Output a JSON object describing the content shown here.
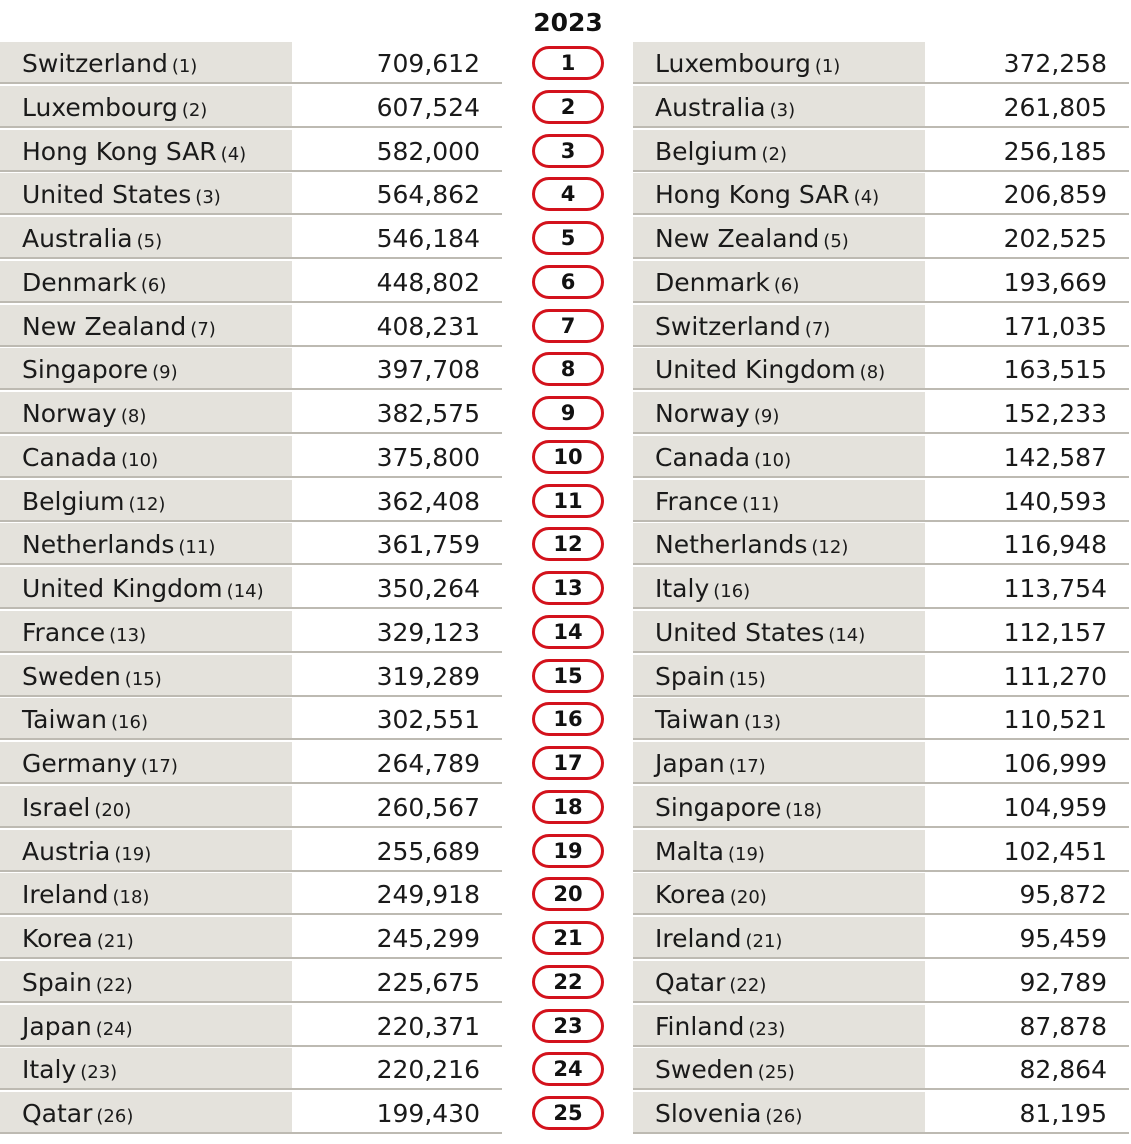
{
  "year": "2023",
  "ranks": [
    "1",
    "2",
    "3",
    "4",
    "5",
    "6",
    "7",
    "8",
    "9",
    "10",
    "11",
    "12",
    "13",
    "14",
    "15",
    "16",
    "17",
    "18",
    "19",
    "20",
    "21",
    "22",
    "23",
    "24",
    "25"
  ],
  "left": [
    {
      "name": "Switzerland",
      "prev": "(1)",
      "value": "709,612"
    },
    {
      "name": "Luxembourg",
      "prev": "(2)",
      "value": "607,524"
    },
    {
      "name": "Hong Kong SAR",
      "prev": "(4)",
      "value": "582,000"
    },
    {
      "name": "United States",
      "prev": "(3)",
      "value": "564,862"
    },
    {
      "name": "Australia",
      "prev": "(5)",
      "value": "546,184"
    },
    {
      "name": "Denmark",
      "prev": "(6)",
      "value": "448,802"
    },
    {
      "name": "New Zealand",
      "prev": "(7)",
      "value": "408,231"
    },
    {
      "name": "Singapore",
      "prev": "(9)",
      "value": "397,708"
    },
    {
      "name": "Norway",
      "prev": "(8)",
      "value": "382,575"
    },
    {
      "name": "Canada",
      "prev": "(10)",
      "value": "375,800"
    },
    {
      "name": "Belgium",
      "prev": "(12)",
      "value": "362,408"
    },
    {
      "name": "Netherlands",
      "prev": "(11)",
      "value": "361,759"
    },
    {
      "name": "United Kingdom",
      "prev": "(14)",
      "value": "350,264"
    },
    {
      "name": "France",
      "prev": "(13)",
      "value": "329,123"
    },
    {
      "name": "Sweden",
      "prev": "(15)",
      "value": "319,289"
    },
    {
      "name": "Taiwan",
      "prev": "(16)",
      "value": "302,551"
    },
    {
      "name": "Germany",
      "prev": "(17)",
      "value": "264,789"
    },
    {
      "name": "Israel",
      "prev": "(20)",
      "value": "260,567"
    },
    {
      "name": "Austria",
      "prev": "(19)",
      "value": "255,689"
    },
    {
      "name": "Ireland",
      "prev": "(18)",
      "value": "249,918"
    },
    {
      "name": "Korea",
      "prev": "(21)",
      "value": "245,299"
    },
    {
      "name": "Spain",
      "prev": "(22)",
      "value": "225,675"
    },
    {
      "name": "Japan",
      "prev": "(24)",
      "value": "220,371"
    },
    {
      "name": "Italy",
      "prev": "(23)",
      "value": "220,216"
    },
    {
      "name": "Qatar",
      "prev": "(26)",
      "value": "199,430"
    }
  ],
  "right": [
    {
      "name": "Luxembourg",
      "prev": "(1)",
      "value": "372,258"
    },
    {
      "name": "Australia",
      "prev": "(3)",
      "value": "261,805"
    },
    {
      "name": "Belgium",
      "prev": "(2)",
      "value": "256,185"
    },
    {
      "name": "Hong Kong SAR",
      "prev": "(4)",
      "value": "206,859"
    },
    {
      "name": "New Zealand",
      "prev": "(5)",
      "value": "202,525"
    },
    {
      "name": "Denmark",
      "prev": "(6)",
      "value": "193,669"
    },
    {
      "name": "Switzerland",
      "prev": "(7)",
      "value": "171,035"
    },
    {
      "name": "United Kingdom",
      "prev": "(8)",
      "value": "163,515"
    },
    {
      "name": "Norway",
      "prev": "(9)",
      "value": "152,233"
    },
    {
      "name": "Canada",
      "prev": "(10)",
      "value": "142,587"
    },
    {
      "name": "France",
      "prev": "(11)",
      "value": "140,593"
    },
    {
      "name": "Netherlands",
      "prev": "(12)",
      "value": "116,948"
    },
    {
      "name": "Italy",
      "prev": "(16)",
      "value": "113,754"
    },
    {
      "name": "United States",
      "prev": "(14)",
      "value": "112,157"
    },
    {
      "name": "Spain",
      "prev": "(15)",
      "value": "111,270"
    },
    {
      "name": "Taiwan",
      "prev": "(13)",
      "value": "110,521"
    },
    {
      "name": "Japan",
      "prev": "(17)",
      "value": "106,999"
    },
    {
      "name": "Singapore",
      "prev": "(18)",
      "value": "104,959"
    },
    {
      "name": "Malta",
      "prev": "(19)",
      "value": "102,451"
    },
    {
      "name": "Korea",
      "prev": "(20)",
      "value": "95,872"
    },
    {
      "name": "Ireland",
      "prev": "(21)",
      "value": "95,459"
    },
    {
      "name": "Qatar",
      "prev": "(22)",
      "value": "92,789"
    },
    {
      "name": "Finland",
      "prev": "(23)",
      "value": "87,878"
    },
    {
      "name": "Sweden",
      "prev": "(25)",
      "value": "82,864"
    },
    {
      "name": "Slovenia",
      "prev": "(26)",
      "value": "81,195"
    }
  ]
}
